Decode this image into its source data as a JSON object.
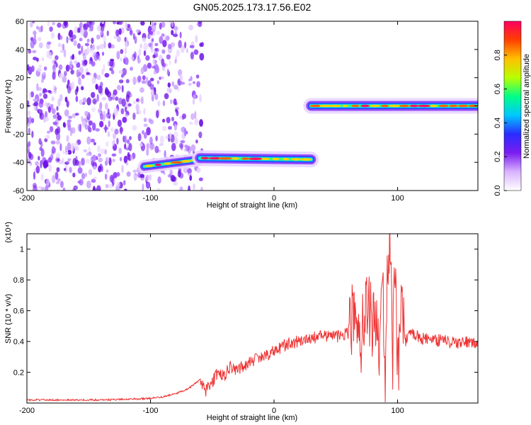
{
  "figure": {
    "title": "GN05.2025.173.17.56.E02"
  },
  "chart_data": [
    {
      "type": "heatmap",
      "title": "GN05.2025.173.17.56.E02",
      "xlabel": "Height of straight line (km)",
      "ylabel": "Frequency (Hz)",
      "xlim": [
        -200,
        165
      ],
      "ylim": [
        -60,
        60
      ],
      "x_ticks": [
        "-200",
        "-100",
        "0",
        "100"
      ],
      "y_ticks": [
        "-60",
        "-40",
        "-20",
        "0",
        "20",
        "40",
        "60"
      ],
      "grid": false,
      "colorbar": {
        "label": "Normalized spectral amplitude",
        "range": [
          0,
          1
        ],
        "ticks": [
          "0.0",
          "0.2",
          "0.4",
          "0.6",
          "0.8"
        ],
        "colormap": [
          "#ffffff",
          "#d9b3ff",
          "#7a1cf0",
          "#2a2cff",
          "#00c8ff",
          "#00ff88",
          "#b8ff00",
          "#ffc000",
          "#ff4000",
          "#ff0060"
        ]
      },
      "traces": [
        {
          "x_start": -105,
          "x_end": -60,
          "freq_start": -43,
          "freq_end": -38,
          "amplitude": 0.7
        },
        {
          "x_start": -60,
          "x_end": 30,
          "freq_start": -37,
          "freq_end": -38,
          "amplitude": 0.9
        },
        {
          "x_start": 30,
          "x_end": 165,
          "freq_start": 0,
          "freq_end": 0,
          "amplitude": 0.95
        }
      ],
      "noise_region_x": [
        -200,
        -58
      ]
    },
    {
      "type": "line",
      "xlabel": "Height of straight line (km)",
      "ylabel": "SNR (10 * v/v)",
      "y_multiplier": "(x10⁴)",
      "xlim": [
        -200,
        165
      ],
      "ylim": [
        0,
        1.1
      ],
      "x_ticks": [
        "-200",
        "-100",
        "0",
        "100"
      ],
      "y_ticks": [
        "0.2",
        "0.4",
        "0.6",
        "0.8",
        "1"
      ],
      "grid": false,
      "line_color": "#ee3333",
      "series": [
        {
          "x": [
            -200,
            -180,
            -160,
            -140,
            -120,
            -100,
            -90,
            -80,
            -70,
            -65,
            -60,
            -55,
            -50,
            -45,
            -40,
            -35,
            -30,
            -20,
            -10,
            0,
            10,
            20,
            30,
            40,
            50,
            60,
            65,
            70,
            75,
            80,
            85,
            88,
            90,
            92,
            94,
            96,
            98,
            100,
            103,
            106,
            110,
            120,
            130,
            140,
            150,
            160,
            165
          ],
          "y": [
            0.02,
            0.02,
            0.02,
            0.02,
            0.025,
            0.03,
            0.04,
            0.06,
            0.09,
            0.12,
            0.15,
            0.08,
            0.14,
            0.2,
            0.18,
            0.24,
            0.22,
            0.26,
            0.3,
            0.34,
            0.38,
            0.4,
            0.42,
            0.44,
            0.43,
            0.45,
            0.6,
            0.38,
            0.7,
            0.5,
            0.4,
            0.75,
            0.2,
            0.9,
            1.1,
            0.3,
            0.85,
            0.2,
            0.6,
            0.4,
            0.45,
            0.42,
            0.41,
            0.4,
            0.39,
            0.4,
            0.4
          ]
        }
      ]
    }
  ]
}
